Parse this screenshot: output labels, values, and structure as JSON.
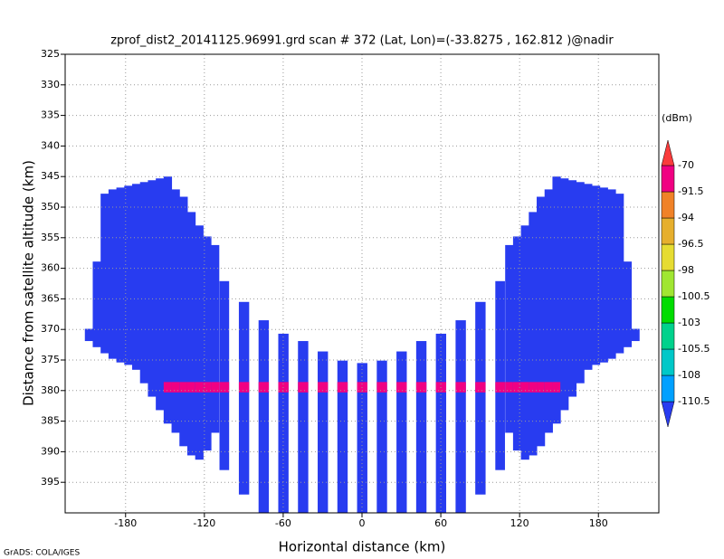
{
  "chart_data": {
    "type": "swath",
    "title": "zprof_dist2_20141125.96991.grd  scan # 372  (Lat, Lon)=(-33.8275 , 162.812 )@nadir",
    "x_label": "Horizontal distance (km)",
    "y_label": "Distance from satellite altitude (km)",
    "credit": "GrADS: COLA/IGES",
    "colorbar_label": "(dBm)",
    "xlim": [
      -226,
      226
    ],
    "ylim": [
      400,
      325
    ],
    "xticks": [
      -180,
      -120,
      -60,
      0,
      60,
      120,
      180
    ],
    "yticks": [
      325,
      330,
      335,
      340,
      345,
      350,
      355,
      360,
      365,
      370,
      375,
      380,
      385,
      390,
      395
    ],
    "grid": true,
    "levels": [
      -110.5,
      -108,
      -105.5,
      -103,
      -100.5,
      -98,
      -96.5,
      -94,
      -91.5,
      -70
    ],
    "colors": [
      "#283cf0",
      "#00a0ff",
      "#00c8c8",
      "#00d28c",
      "#00dc00",
      "#a0e632",
      "#e6dc32",
      "#e6af2d",
      "#f08228",
      "#f00082",
      "#fa3c3c"
    ],
    "surface_top": 378.6,
    "surface_bottom": 380.3,
    "columns": {
      "x": [
        -208,
        -202,
        -196,
        -190,
        -184,
        -178,
        -172,
        -166,
        -160,
        -154,
        -148,
        -142,
        -136,
        -130,
        -124,
        -118,
        -112,
        -105,
        -90,
        -75,
        -60,
        -45,
        -30,
        -15,
        0,
        15,
        30,
        45,
        60,
        75,
        90,
        105,
        112,
        118,
        124,
        130,
        136,
        142,
        148,
        154,
        160,
        166,
        172,
        178,
        184,
        190,
        196,
        202,
        208
      ],
      "top": [
        369.9,
        358.9,
        347.8,
        347.1,
        346.8,
        346.5,
        346.2,
        345.9,
        345.6,
        345.3,
        345.0,
        347.1,
        348.3,
        350.8,
        353.0,
        354.8,
        356.2,
        362.1,
        365.5,
        368.5,
        370.7,
        371.9,
        373.6,
        375.1,
        375.5,
        375.1,
        373.6,
        371.9,
        370.7,
        368.5,
        365.5,
        362.1,
        356.2,
        354.8,
        353.0,
        350.8,
        348.3,
        347.1,
        345.0,
        345.3,
        345.6,
        345.9,
        346.2,
        346.5,
        346.8,
        347.1,
        347.8,
        358.9,
        369.9
      ],
      "bottom": [
        371.9,
        372.9,
        373.9,
        374.8,
        375.4,
        375.8,
        376.6,
        378.8,
        381.0,
        383.2,
        385.4,
        386.9,
        389.1,
        390.6,
        391.3,
        389.8,
        386.9,
        393.0,
        397.0,
        400,
        400,
        400,
        400,
        400,
        400,
        400,
        400,
        400,
        400,
        400,
        397.0,
        393.0,
        386.9,
        389.8,
        391.3,
        390.6,
        389.1,
        386.9,
        385.4,
        383.2,
        381.0,
        378.8,
        376.6,
        375.8,
        375.4,
        374.8,
        373.9,
        372.9,
        371.9
      ],
      "values": [
        -112,
        -112,
        -112,
        -112,
        -112,
        -112,
        -112,
        -112,
        -112,
        -112,
        -112,
        -112,
        -112,
        -112,
        -112,
        -112,
        -112,
        -112,
        -112,
        -112,
        -112,
        -112,
        -112,
        -112,
        -112,
        -112,
        -112,
        -112,
        -112,
        -112,
        -112,
        -112,
        -112,
        -112,
        -112,
        -112,
        -112,
        -112,
        -112,
        -112,
        -112,
        -112,
        -112,
        -112,
        -112,
        -112,
        -112,
        -112,
        -112
      ],
      "surface_values": [
        null,
        null,
        null,
        null,
        null,
        null,
        null,
        null,
        null,
        null,
        -85,
        -85,
        -85,
        -85,
        -85,
        -85,
        -85,
        -90,
        -90,
        -90,
        -90,
        -90,
        -90,
        -90,
        -90,
        -90,
        -90,
        -90,
        -90,
        -90,
        -90,
        -90,
        -85,
        -85,
        -85,
        -85,
        -85,
        -85,
        -85,
        null,
        null,
        null,
        null,
        null,
        null,
        null,
        null,
        null,
        null
      ]
    }
  }
}
